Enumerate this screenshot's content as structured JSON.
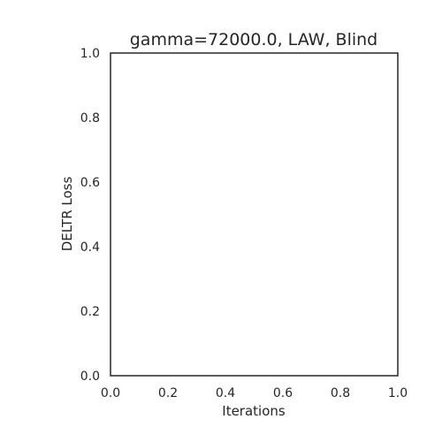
{
  "chart_data": {
    "type": "line",
    "title": "gamma=72000.0, LAW, Blind",
    "xlabel": "Iterations",
    "ylabel": "DELTR Loss",
    "xlim": [
      0.0,
      1.0
    ],
    "ylim": [
      0.0,
      1.0
    ],
    "xticks": [
      "0.0",
      "0.2",
      "0.4",
      "0.6",
      "0.8",
      "1.0"
    ],
    "yticks": [
      "0.0",
      "0.2",
      "0.4",
      "0.6",
      "0.8",
      "1.0"
    ],
    "grid": false,
    "series": []
  }
}
